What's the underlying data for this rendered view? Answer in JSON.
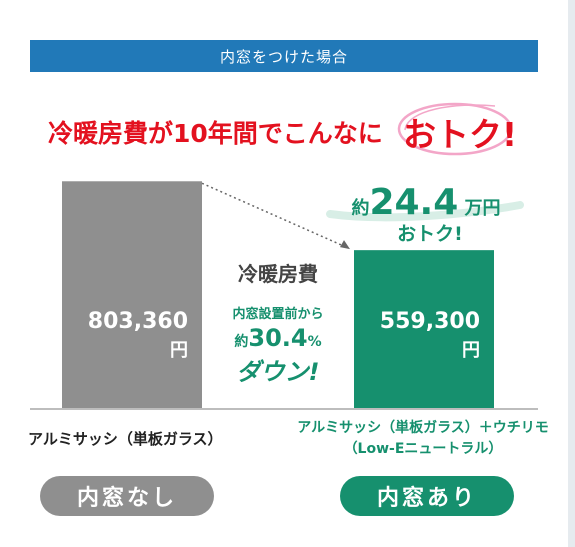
{
  "header": {
    "title": "内窓をつけた場合"
  },
  "headline": {
    "text": "冷暖房費が10年間でこんなに",
    "emphasis": "おトク!"
  },
  "chart_data": {
    "type": "bar",
    "categories": [
      "内窓なし",
      "内窓あり"
    ],
    "values": [
      803360,
      559300
    ],
    "value_labels": [
      "803,360",
      "559,300"
    ],
    "unit": "円",
    "category_descriptions": [
      "アルミサッシ（単板ガラス）",
      "アルミサッシ（単板ガラス）＋ウチリモ（Low-Eニュートラル）"
    ],
    "colors": [
      "#8f8f8f",
      "#16906e"
    ],
    "ylim": [
      0,
      900000
    ],
    "savings": {
      "prefix": "約",
      "value": "24.4",
      "unit": "万円",
      "suffix": "おトク!"
    },
    "middle_note": {
      "title": "冷暖房費",
      "line1": "内窓設置前から",
      "prefix": "約",
      "value": "30.4",
      "unit": "%",
      "line3": "ダウン!"
    }
  }
}
